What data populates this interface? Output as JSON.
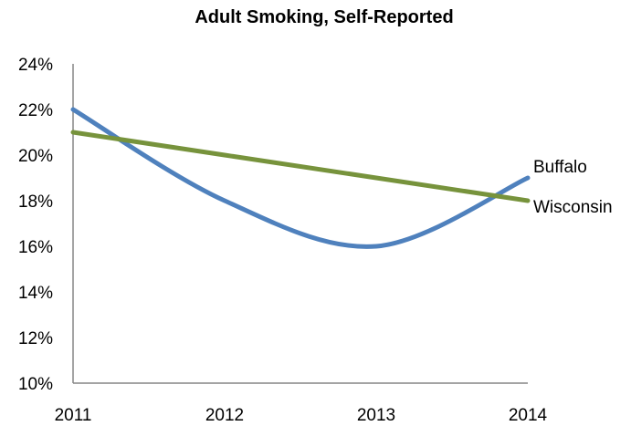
{
  "chart_data": {
    "type": "line",
    "title": "Adult Smoking, Self-Reported",
    "xlabel": "",
    "ylabel": "",
    "x": [
      2011,
      2012,
      2013,
      2014
    ],
    "x_tick_labels": [
      "2011",
      "2012",
      "2013",
      "2014"
    ],
    "y_tick_values": [
      10,
      12,
      14,
      16,
      18,
      20,
      22,
      24
    ],
    "y_tick_labels": [
      "10%",
      "12%",
      "14%",
      "16%",
      "18%",
      "20%",
      "22%",
      "24%"
    ],
    "ylim": [
      10,
      24
    ],
    "grid": false,
    "legend": "none",
    "series": [
      {
        "name": "Buffalo",
        "values": [
          22,
          18,
          16,
          19
        ],
        "color": "#4f81bd",
        "smooth": true
      },
      {
        "name": "Wisconsin",
        "values": [
          21,
          20,
          19,
          18
        ],
        "color": "#77933c",
        "smooth": false
      }
    ]
  }
}
